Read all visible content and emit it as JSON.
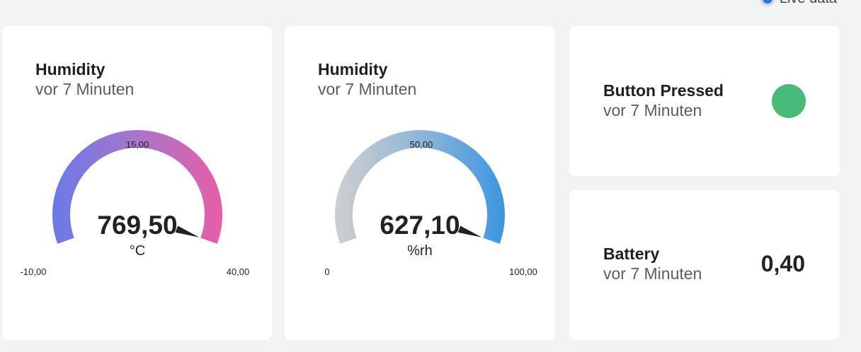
{
  "header": {
    "live_label": "Live data"
  },
  "cards": [
    {
      "title": "Humidity",
      "subtitle": "vor 7 Minuten",
      "gauge": {
        "value_text": "769,50",
        "unit": "°C",
        "min": -10,
        "max": 40,
        "min_label": "-10,00",
        "mid_label": "15,00",
        "max_label": "40,00",
        "needle_fraction": 1.0,
        "gradient_start": "#6a7ae8",
        "gradient_mid": "#a875c9",
        "gradient_end": "#e85ea8"
      }
    },
    {
      "title": "Humidity",
      "subtitle": "vor 7 Minuten",
      "gauge": {
        "value_text": "627,10",
        "unit": "%rh",
        "min": 0,
        "max": 100,
        "min_label": "0",
        "mid_label": "50,00",
        "max_label": "100,00",
        "needle_fraction": 1.0,
        "gradient_start": "#cfcfcf",
        "gradient_mid": "#8fb6d8",
        "gradient_end": "#3d95e0"
      }
    }
  ],
  "button_card": {
    "title": "Button Pressed",
    "subtitle": "vor 7 Minuten",
    "status_color": "#48bb78",
    "status_icon": "status-indicator-icon"
  },
  "battery_card": {
    "title": "Battery",
    "subtitle": "vor 7 Minuten",
    "value": "0,40"
  }
}
